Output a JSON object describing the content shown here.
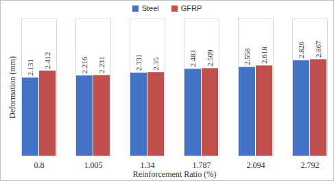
{
  "chart_data": {
    "type": "bar",
    "x_label": "Reinforcement Ratio (%)",
    "y_label": "Deformation (mm)",
    "categories": [
      "0.8",
      "1.005",
      "1.34",
      "1.787",
      "2.094",
      "2.792"
    ],
    "series": [
      {
        "name": "Steel",
        "color": "#4472c4",
        "values": [
          2.131,
          2.216,
          2.331,
          2.483,
          2.558,
          2.826
        ]
      },
      {
        "name": "GFRP",
        "color": "#c0504d",
        "values": [
          2.412,
          2.231,
          2.35,
          2.509,
          2.618,
          2.867
        ]
      }
    ],
    "ylim": [
      -1,
      4.5
    ],
    "tick_labels": "x",
    "data_labels": true,
    "legend": "top",
    "grid": false
  }
}
